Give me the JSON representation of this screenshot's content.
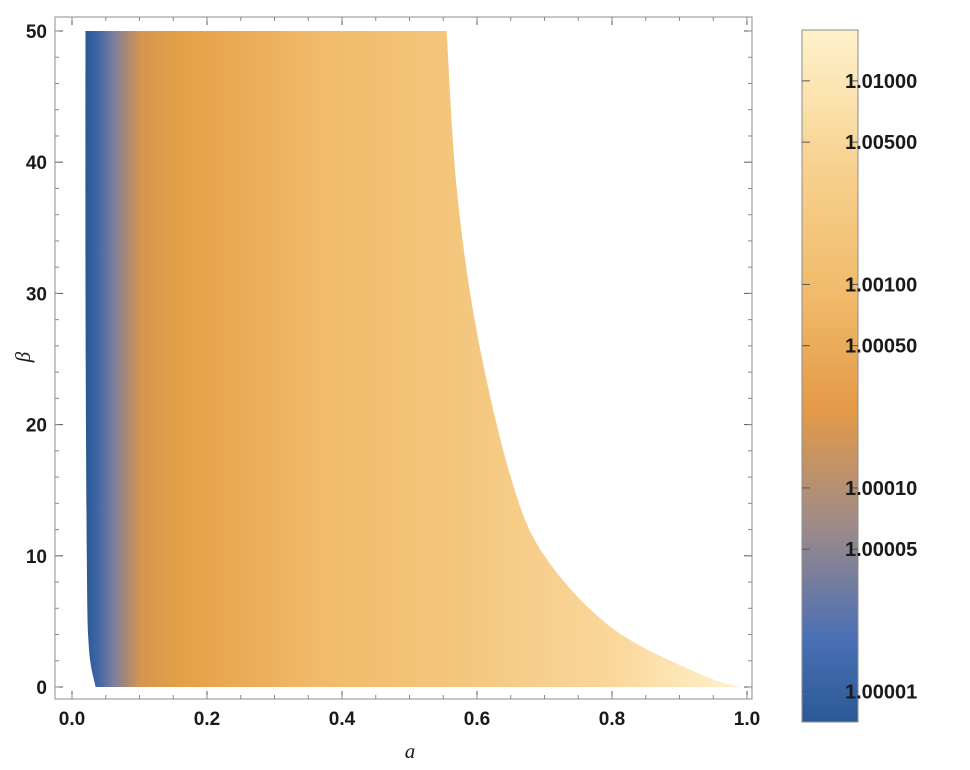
{
  "chart_data": {
    "type": "heatmap",
    "xlabel": "a",
    "ylabel": "β",
    "xlim": [
      0,
      1
    ],
    "ylim": [
      -1,
      51
    ],
    "x_ticks": [
      "0.0",
      "0.2",
      "0.4",
      "0.6",
      "0.8",
      "1.0"
    ],
    "x_tick_values": [
      0,
      0.2,
      0.4,
      0.6,
      0.8,
      1.0
    ],
    "y_ticks": [
      "0",
      "10",
      "20",
      "30",
      "40",
      "50"
    ],
    "y_tick_values": [
      0,
      10,
      20,
      30,
      40,
      50
    ],
    "region": {
      "description_units": "a ranges from left boundary to right boundary for each beta",
      "left_boundary": [
        [
          0.035,
          0
        ],
        [
          0.025,
          3
        ],
        [
          0.022,
          10
        ],
        [
          0.02,
          30
        ],
        [
          0.02,
          50
        ]
      ],
      "right_boundary": [
        [
          0.99,
          0
        ],
        [
          0.93,
          1
        ],
        [
          0.8,
          4.5
        ],
        [
          0.7,
          10
        ],
        [
          0.65,
          16
        ],
        [
          0.6,
          27
        ],
        [
          0.57,
          38
        ],
        [
          0.555,
          50
        ]
      ]
    },
    "colorbar": {
      "scale": "log",
      "labels": [
        "1.01000",
        "1.00500",
        "1.00100",
        "1.00050",
        "1.00010",
        "1.00005",
        "1.00001"
      ],
      "values": [
        1.01,
        1.005,
        1.001,
        1.0005,
        1.0001,
        1.00005,
        1.00001
      ],
      "range_offset_log10": [
        -5.15,
        -1.75
      ],
      "colormap": [
        "#2a5a96",
        "#4a6fb5",
        "#a08b87",
        "#e49a48",
        "#f0bb6b",
        "#f6d08c",
        "#fde8b4",
        "#fff2cc"
      ]
    },
    "grid": false,
    "colors": {
      "frame": "#8c8c8c",
      "tick": "#555555"
    }
  }
}
